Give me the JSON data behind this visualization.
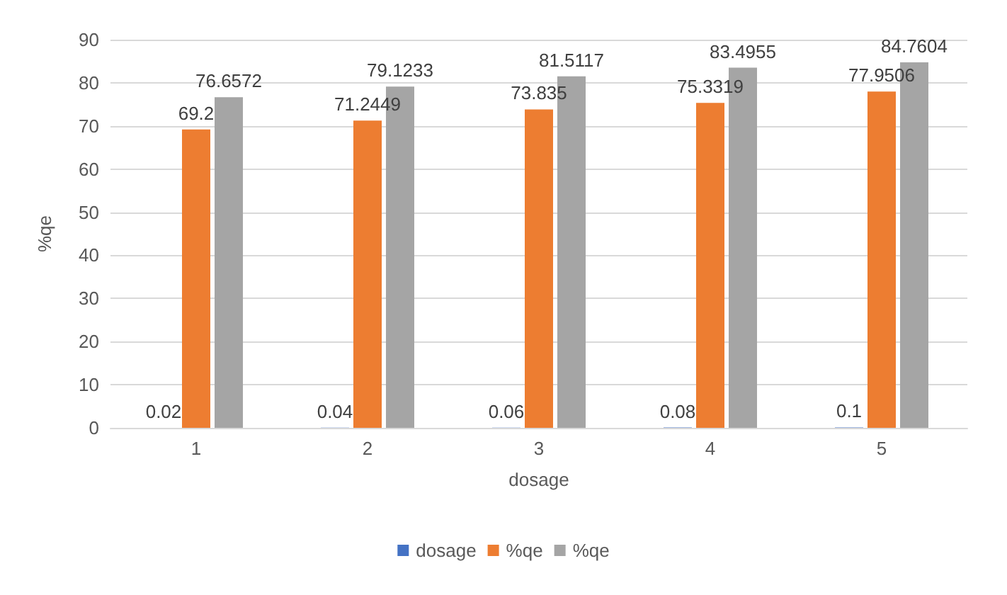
{
  "chart_data": {
    "type": "bar",
    "xlabel": "dosage",
    "ylabel": "%qe",
    "categories": [
      "1",
      "2",
      "3",
      "4",
      "5"
    ],
    "series": [
      {
        "name": "dosage",
        "color": "#4472c4",
        "values": [
          0.02,
          0.04,
          0.06,
          0.08,
          0.1
        ]
      },
      {
        "name": "%qe",
        "color": "#ed7d31",
        "values": [
          69.2,
          71.2449,
          73.835,
          75.3319,
          77.9506
        ]
      },
      {
        "name": "%qe",
        "color": "#a5a5a5",
        "values": [
          76.6572,
          79.1233,
          81.5117,
          83.4955,
          84.7604
        ]
      }
    ],
    "ylim": [
      0,
      90
    ],
    "yticks": [
      0,
      10,
      20,
      30,
      40,
      50,
      60,
      70,
      80,
      90
    ],
    "grid": "y",
    "legend": "bottom",
    "data_labels": true
  }
}
